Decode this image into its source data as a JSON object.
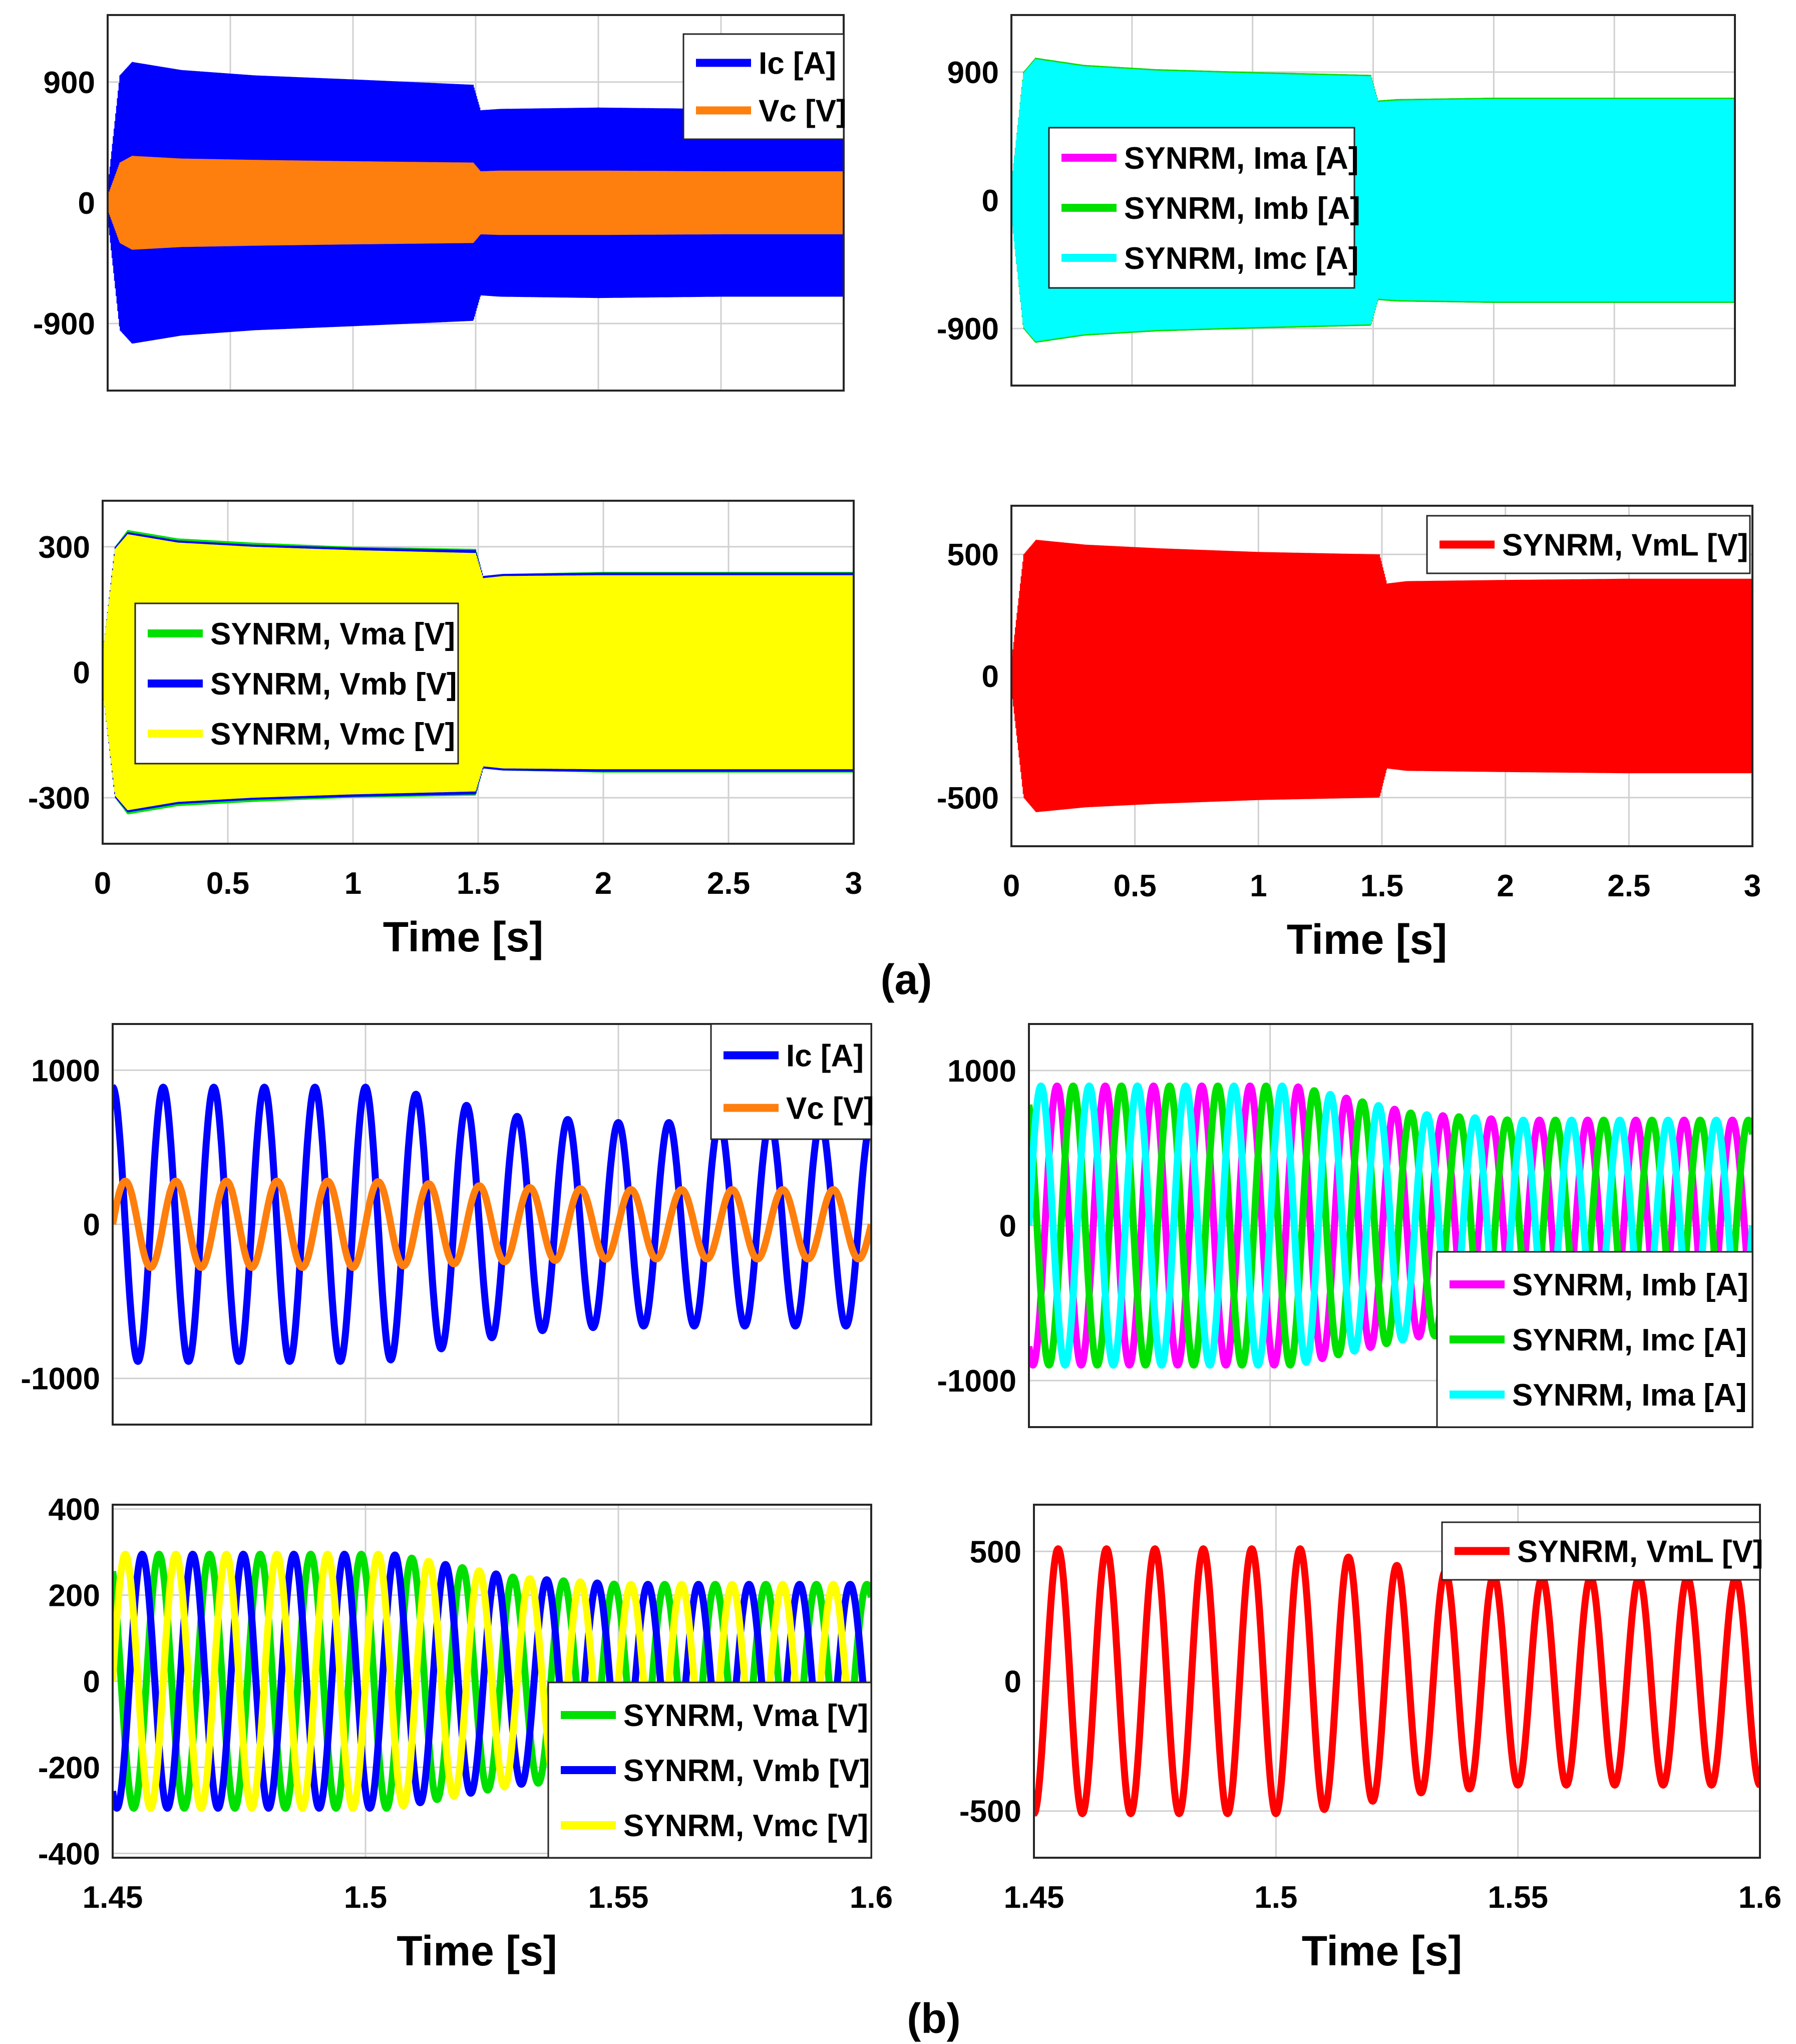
{
  "captions": {
    "a": "(a)",
    "b": "(b)"
  },
  "chart_data": [
    {
      "type": "line",
      "title": "",
      "xlabel": "",
      "ylabel": "",
      "xlim": [
        0,
        3
      ],
      "ylim": [
        -1400,
        1400
      ],
      "xticks": [
        0,
        0.5,
        1,
        1.5,
        2,
        2.5,
        3
      ],
      "xtick_labels_shown": false,
      "yticks": [
        -900,
        0,
        900
      ],
      "ytick_labels": [
        "-900",
        "0",
        "900"
      ],
      "grid": true,
      "legend_position": "top-right",
      "render": "envelope",
      "series": [
        {
          "name": "Ic [A]",
          "color": "#0000ff",
          "envelope_t": [
            0,
            0.05,
            0.1,
            0.3,
            0.6,
            1.0,
            1.49,
            1.52,
            1.6,
            2.0,
            2.5,
            3.0
          ],
          "envelope_amp": [
            100,
            950,
            1050,
            990,
            950,
            920,
            880,
            690,
            700,
            710,
            700,
            700
          ]
        },
        {
          "name": "Vc [V]",
          "color": "#ff7f0e",
          "envelope_t": [
            0,
            0.05,
            0.1,
            0.3,
            0.6,
            1.0,
            1.49,
            1.52,
            1.6,
            2.0,
            2.5,
            3.0
          ],
          "envelope_amp": [
            50,
            300,
            350,
            330,
            320,
            310,
            300,
            235,
            240,
            240,
            235,
            235
          ]
        }
      ]
    },
    {
      "type": "line",
      "title": "",
      "xlabel": "",
      "ylabel": "",
      "xlim": [
        0,
        3
      ],
      "ylim": [
        -1300,
        1300
      ],
      "xticks": [
        0,
        0.5,
        1,
        1.5,
        2,
        2.5,
        3
      ],
      "xtick_labels_shown": false,
      "yticks": [
        -900,
        0,
        900
      ],
      "ytick_labels": [
        "-900",
        "0",
        "900"
      ],
      "grid": true,
      "legend_position": "middle-left",
      "render": "envelope",
      "series": [
        {
          "name": "SYNRM, Ima [A]",
          "color": "#ff00ff",
          "envelope_t": [
            0,
            0.05,
            0.1,
            0.3,
            0.6,
            1.0,
            1.49,
            1.52,
            1.6,
            2.0,
            2.5,
            3.0
          ],
          "envelope_amp": [
            100,
            900,
            1000,
            950,
            920,
            900,
            880,
            700,
            710,
            720,
            720,
            720
          ]
        },
        {
          "name": "SYNRM, Imb [A]",
          "color": "#00e000",
          "envelope_t": [
            0,
            0.05,
            0.1,
            0.3,
            0.6,
            1.0,
            1.49,
            1.52,
            1.6,
            2.0,
            2.5,
            3.0
          ],
          "envelope_amp": [
            100,
            900,
            1000,
            950,
            920,
            900,
            880,
            700,
            710,
            720,
            720,
            720
          ]
        },
        {
          "name": "SYNRM, Imc [A]",
          "color": "#00ffff",
          "envelope_t": [
            0,
            0.05,
            0.1,
            0.3,
            0.6,
            1.0,
            1.49,
            1.52,
            1.6,
            2.0,
            2.5,
            3.0
          ],
          "envelope_amp": [
            100,
            890,
            990,
            940,
            910,
            890,
            870,
            690,
            700,
            710,
            710,
            710
          ]
        }
      ]
    },
    {
      "type": "line",
      "title": "",
      "xlabel": "Time [s]",
      "ylabel": "",
      "xlim": [
        0,
        3
      ],
      "ylim": [
        -410,
        410
      ],
      "xticks": [
        0,
        0.5,
        1,
        1.5,
        2,
        2.5,
        3
      ],
      "xtick_labels": [
        "0",
        "0.5",
        "1",
        "1.5",
        "2",
        "2.5",
        "3"
      ],
      "yticks": [
        -300,
        0,
        300
      ],
      "ytick_labels": [
        "-300",
        "0",
        "300"
      ],
      "grid": true,
      "legend_position": "middle-left",
      "render": "envelope",
      "series": [
        {
          "name": "SYNRM, Vma [V]",
          "color": "#00e000",
          "envelope_t": [
            0,
            0.05,
            0.1,
            0.3,
            0.6,
            1.0,
            1.49,
            1.52,
            1.6,
            2.0,
            2.5,
            3.0
          ],
          "envelope_amp": [
            40,
            300,
            340,
            320,
            310,
            300,
            295,
            230,
            235,
            240,
            240,
            240
          ]
        },
        {
          "name": "SYNRM, Vmb [V]",
          "color": "#0000ff",
          "envelope_t": [
            0,
            0.05,
            0.1,
            0.3,
            0.6,
            1.0,
            1.49,
            1.52,
            1.6,
            2.0,
            2.5,
            3.0
          ],
          "envelope_amp": [
            40,
            300,
            335,
            315,
            305,
            298,
            292,
            230,
            235,
            238,
            238,
            238
          ]
        },
        {
          "name": "SYNRM, Vmc [V]",
          "color": "#ffff00",
          "envelope_t": [
            0,
            0.05,
            0.1,
            0.3,
            0.6,
            1.0,
            1.49,
            1.52,
            1.6,
            2.0,
            2.5,
            3.0
          ],
          "envelope_amp": [
            40,
            295,
            330,
            310,
            300,
            292,
            285,
            225,
            230,
            232,
            232,
            232
          ]
        }
      ]
    },
    {
      "type": "line",
      "title": "",
      "xlabel": "Time [s]",
      "ylabel": "",
      "xlim": [
        0,
        3
      ],
      "ylim": [
        -700,
        700
      ],
      "xticks": [
        0,
        0.5,
        1,
        1.5,
        2,
        2.5,
        3
      ],
      "xtick_labels": [
        "0",
        "0.5",
        "1",
        "1.5",
        "2",
        "2.5",
        "3"
      ],
      "yticks": [
        -500,
        0,
        500
      ],
      "ytick_labels": [
        "-500",
        "0",
        "500"
      ],
      "grid": true,
      "legend_position": "top-right",
      "render": "envelope",
      "series": [
        {
          "name": "SYNRM, VmL [V]",
          "color": "#ff0000",
          "envelope_t": [
            0,
            0.05,
            0.1,
            0.3,
            0.6,
            1.0,
            1.49,
            1.52,
            1.6,
            2.0,
            2.5,
            3.0
          ],
          "envelope_amp": [
            50,
            500,
            560,
            540,
            525,
            510,
            500,
            380,
            390,
            395,
            400,
            400
          ]
        }
      ]
    },
    {
      "type": "line",
      "title": "",
      "xlabel": "",
      "ylabel": "",
      "xlim": [
        1.45,
        1.6
      ],
      "ylim": [
        -1300,
        1300
      ],
      "xticks": [
        1.45,
        1.5,
        1.55,
        1.6
      ],
      "xtick_labels_shown": false,
      "yticks": [
        -1000,
        0,
        1000
      ],
      "ytick_labels": [
        "-1000",
        "0",
        "1000"
      ],
      "grid": true,
      "legend_position": "top-right",
      "render": "sine",
      "frequency_hz": 100,
      "series": [
        {
          "name": "Ic [A]",
          "color": "#0000ff",
          "phase_deg": 90,
          "amp_t": [
            1.45,
            1.5,
            1.505,
            1.53,
            1.55,
            1.6
          ],
          "amp": [
            890,
            890,
            880,
            700,
            660,
            660
          ]
        },
        {
          "name": "Vc [V]",
          "color": "#ff7f0e",
          "phase_deg": 0,
          "amp_t": [
            1.45,
            1.5,
            1.53,
            1.55,
            1.6
          ],
          "amp": [
            280,
            280,
            240,
            225,
            225
          ]
        }
      ]
    },
    {
      "type": "line",
      "title": "",
      "xlabel": "",
      "ylabel": "",
      "xlim": [
        1.45,
        1.6
      ],
      "ylim": [
        -1300,
        1300
      ],
      "xticks": [
        1.45,
        1.5,
        1.55,
        1.6
      ],
      "xtick_labels_shown": false,
      "yticks": [
        -1000,
        0,
        1000
      ],
      "ytick_labels": [
        "-1000",
        "0",
        "1000"
      ],
      "grid": true,
      "legend_position": "bottom-right",
      "render": "sine",
      "frequency_hz": 100,
      "series": [
        {
          "name": "SYNRM, Imb [A]",
          "color": "#ff00ff",
          "phase_deg": -120,
          "amp_t": [
            1.45,
            1.505,
            1.53,
            1.55,
            1.6
          ],
          "amp": [
            900,
            900,
            720,
            680,
            680
          ]
        },
        {
          "name": "SYNRM, Imc [A]",
          "color": "#00e000",
          "phase_deg": 120,
          "amp_t": [
            1.45,
            1.505,
            1.53,
            1.55,
            1.6
          ],
          "amp": [
            900,
            900,
            720,
            680,
            680
          ]
        },
        {
          "name": "SYNRM, Ima [A]",
          "color": "#00ffff",
          "phase_deg": 0,
          "amp_t": [
            1.45,
            1.505,
            1.53,
            1.55,
            1.6
          ],
          "amp": [
            900,
            900,
            720,
            680,
            680
          ]
        }
      ]
    },
    {
      "type": "line",
      "title": "",
      "xlabel": "Time [s]",
      "ylabel": "",
      "xlim": [
        1.45,
        1.6
      ],
      "ylim": [
        -410,
        410
      ],
      "xticks": [
        1.45,
        1.5,
        1.55,
        1.6
      ],
      "xtick_labels": [
        "1.45",
        "1.5",
        "1.55",
        "1.6"
      ],
      "yticks": [
        -400,
        -200,
        0,
        200,
        400
      ],
      "ytick_labels": [
        "-400",
        "-200",
        "0",
        "200",
        "400"
      ],
      "grid": true,
      "legend_position": "bottom-right",
      "render": "sine",
      "frequency_hz": 100,
      "series": [
        {
          "name": "SYNRM, Vma [V]",
          "color": "#00e000",
          "phase_deg": 120,
          "amp_t": [
            1.45,
            1.505,
            1.53,
            1.55,
            1.6
          ],
          "amp": [
            295,
            295,
            240,
            225,
            225
          ]
        },
        {
          "name": "SYNRM, Vmb [V]",
          "color": "#0000ff",
          "phase_deg": -120,
          "amp_t": [
            1.45,
            1.505,
            1.53,
            1.55,
            1.6
          ],
          "amp": [
            295,
            295,
            240,
            225,
            225
          ]
        },
        {
          "name": "SYNRM, Vmc [V]",
          "color": "#ffff00",
          "phase_deg": 0,
          "amp_t": [
            1.45,
            1.505,
            1.53,
            1.55,
            1.6
          ],
          "amp": [
            295,
            295,
            240,
            225,
            225
          ]
        }
      ]
    },
    {
      "type": "line",
      "title": "",
      "xlabel": "Time [s]",
      "ylabel": "",
      "xlim": [
        1.45,
        1.6
      ],
      "ylim": [
        -680,
        680
      ],
      "xticks": [
        1.45,
        1.5,
        1.55,
        1.6
      ],
      "xtick_labels": [
        "1.45",
        "1.5",
        "1.55",
        "1.6"
      ],
      "yticks": [
        -500,
        0,
        500
      ],
      "ytick_labels": [
        "-500",
        "0",
        "500"
      ],
      "grid": true,
      "legend_position": "top-right",
      "render": "sine",
      "frequency_hz": 100,
      "series": [
        {
          "name": "SYNRM, VmL [V]",
          "color": "#ff0000",
          "phase_deg": -90,
          "amp_t": [
            1.45,
            1.505,
            1.53,
            1.55,
            1.6
          ],
          "amp": [
            510,
            510,
            430,
            400,
            400
          ]
        }
      ]
    }
  ]
}
